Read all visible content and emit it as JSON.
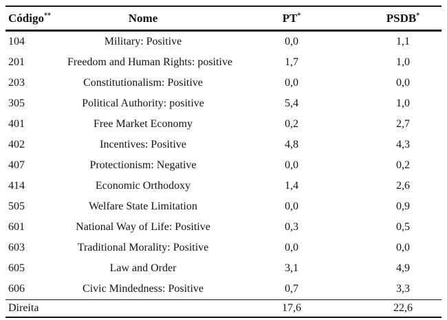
{
  "colors": {
    "text": "#121212",
    "rule": "#121212",
    "background": "#ffffff"
  },
  "table": {
    "header": {
      "codigo": {
        "label": "Código",
        "sup": "**"
      },
      "nome": {
        "label": "Nome",
        "sup": ""
      },
      "pt": {
        "label": "PT",
        "sup": "*"
      },
      "psdb": {
        "label": "PSDB",
        "sup": "*"
      }
    },
    "rows": [
      {
        "codigo": "104",
        "nome": "Military: Positive",
        "pt": "0,0",
        "psdb": "1,1"
      },
      {
        "codigo": "201",
        "nome": "Freedom and Human Rights: positive",
        "pt": "1,7",
        "psdb": "1,0"
      },
      {
        "codigo": "203",
        "nome": "Constitutionalism: Positive",
        "pt": "0,0",
        "psdb": "0,0"
      },
      {
        "codigo": "305",
        "nome": "Political Authority: positive",
        "pt": "5,4",
        "psdb": "1,0"
      },
      {
        "codigo": "401",
        "nome": "Free Market Economy",
        "pt": "0,2",
        "psdb": "2,7"
      },
      {
        "codigo": "402",
        "nome": "Incentives: Positive",
        "pt": "4,8",
        "psdb": "4,3"
      },
      {
        "codigo": "407",
        "nome": "Protectionism: Negative",
        "pt": "0,0",
        "psdb": "0,2"
      },
      {
        "codigo": "414",
        "nome": "Economic Orthodoxy",
        "pt": "1,4",
        "psdb": "2,6"
      },
      {
        "codigo": "505",
        "nome": "Welfare State Limitation",
        "pt": "0,0",
        "psdb": "0,9"
      },
      {
        "codigo": "601",
        "nome": "National Way of Life: Positive",
        "pt": "0,3",
        "psdb": "0,5"
      },
      {
        "codigo": "603",
        "nome": "Traditional Morality: Positive",
        "pt": "0,0",
        "psdb": "0,0"
      },
      {
        "codigo": "605",
        "nome": "Law and Order",
        "pt": "3,1",
        "psdb": "4,9"
      },
      {
        "codigo": "606",
        "nome": "Civic Mindedness: Positive",
        "pt": "0,7",
        "psdb": "3,3"
      }
    ],
    "total": {
      "label": "Direita",
      "nome": "",
      "pt": "17,6",
      "psdb": "22,6"
    }
  }
}
